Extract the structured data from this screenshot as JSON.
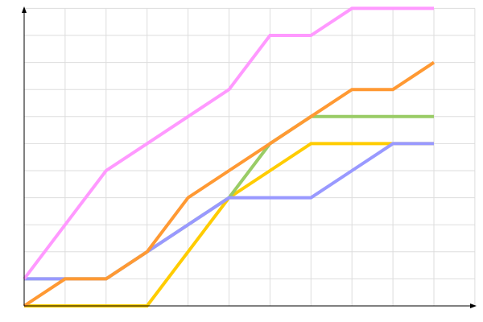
{
  "chart_data": {
    "type": "line",
    "title": "",
    "xlabel": "",
    "ylabel": "",
    "x": [
      0,
      1,
      2,
      3,
      4,
      5,
      6,
      7,
      8,
      9,
      10
    ],
    "xlim": [
      0,
      11
    ],
    "ylim": [
      0,
      11
    ],
    "grid": true,
    "legend": "none",
    "series": [
      {
        "color": "#ffcc00",
        "values": [
          0,
          0,
          0,
          0,
          2,
          4,
          5,
          6,
          6,
          6,
          6
        ]
      },
      {
        "color": "#99cc66",
        "values": [
          1,
          1,
          1,
          2,
          3,
          4,
          6,
          7,
          7,
          7,
          7
        ]
      },
      {
        "color": "#9999ff",
        "values": [
          1,
          1,
          1,
          2,
          3,
          4,
          4,
          4,
          5,
          6,
          6
        ]
      },
      {
        "color": "#ff9933",
        "values": [
          0,
          1,
          1,
          2,
          4,
          5,
          6,
          7,
          8,
          8,
          9
        ]
      },
      {
        "color": "#ff99ff",
        "values": [
          1,
          3,
          5,
          6,
          7,
          8,
          10,
          10,
          11,
          11,
          11
        ]
      }
    ]
  }
}
